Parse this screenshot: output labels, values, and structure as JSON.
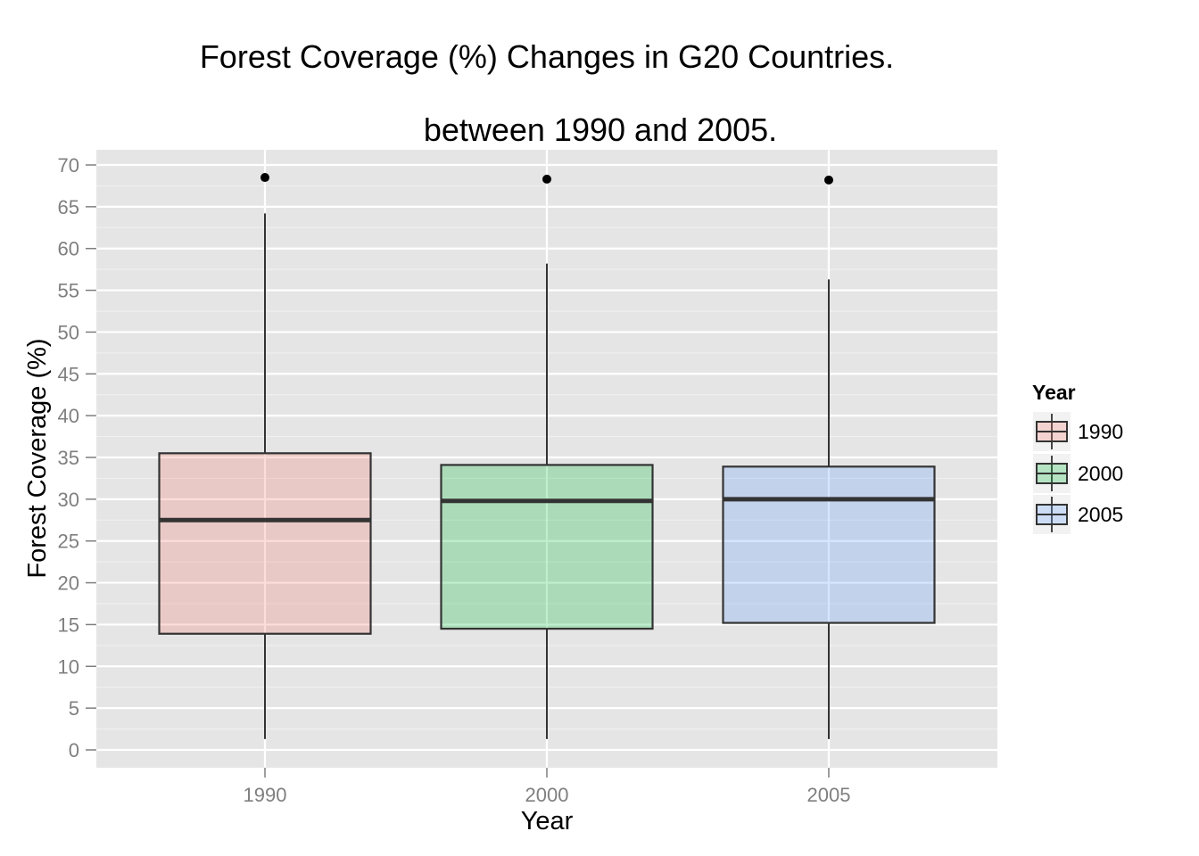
{
  "chart_data": {
    "type": "boxplot",
    "title": "Forest Coverage (%) Changes in G20 Countries.",
    "subtitle": "between 1990 and 2005.",
    "xlabel": "Year",
    "ylabel": "Forest Coverage (%)",
    "ylim": [
      -2,
      72
    ],
    "yticks": [
      "0",
      "5",
      "10",
      "15",
      "20",
      "25",
      "30",
      "35",
      "40",
      "45",
      "50",
      "55",
      "60",
      "65",
      "70"
    ],
    "grid": true,
    "legend": {
      "title": "Year",
      "placement": "right",
      "entries": [
        "1990",
        "2000",
        "2005"
      ]
    },
    "categories": [
      "1990",
      "2000",
      "2005"
    ],
    "boxes": [
      {
        "category": "1990",
        "min": 1.3,
        "q1": 13.9,
        "median": 27.5,
        "q3": 35.5,
        "max": 64.2,
        "outliers": [
          68.5
        ],
        "color": "#f8766d"
      },
      {
        "category": "2000",
        "min": 1.3,
        "q1": 14.5,
        "median": 29.8,
        "q3": 34.1,
        "max": 58.2,
        "outliers": [
          68.3
        ],
        "color": "#00ba38"
      },
      {
        "category": "2005",
        "min": 1.3,
        "q1": 15.2,
        "median": 30.0,
        "q3": 33.9,
        "max": 56.3,
        "outliers": [
          68.2
        ],
        "color": "#619cff"
      }
    ]
  },
  "colors": {
    "panel_background": "#e5e5e5",
    "grid_major": "#ffffff",
    "grid_minor": "#f2f2f2",
    "box_outline": "#333333",
    "tick_label": "#7f7f7f"
  }
}
